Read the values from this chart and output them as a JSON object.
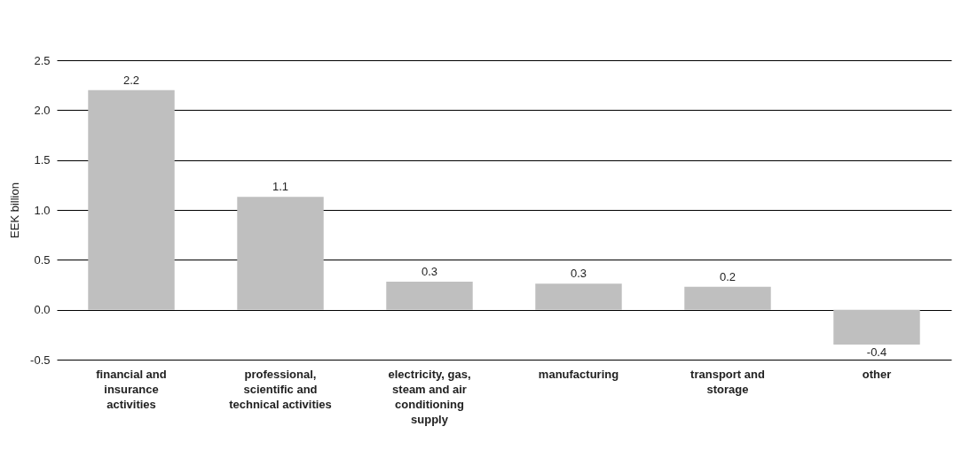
{
  "chart_data": {
    "type": "bar",
    "ylabel": "EEK billion",
    "categories": [
      "financial and insurance activities",
      "professional, scientific and technical activities",
      "electricity, gas, steam and air conditioning supply",
      "manufacturing",
      "transport and storage",
      "other"
    ],
    "values": [
      2.2,
      1.13,
      0.28,
      0.26,
      0.23,
      -0.35
    ],
    "value_labels": [
      "2.2",
      "1.1",
      "0.3",
      "0.3",
      "0.2",
      "-0.4"
    ],
    "color": "#bfbfbf",
    "ylim": [
      -0.5,
      2.5
    ],
    "yticks": [
      -0.5,
      {
        "value": 0,
        "label": "0.0"
      },
      0.5,
      {
        "value": 1,
        "label": "1.0"
      },
      1.5,
      {
        "value": 2,
        "label": "2.0"
      },
      2.5
    ],
    "grid": "y"
  }
}
